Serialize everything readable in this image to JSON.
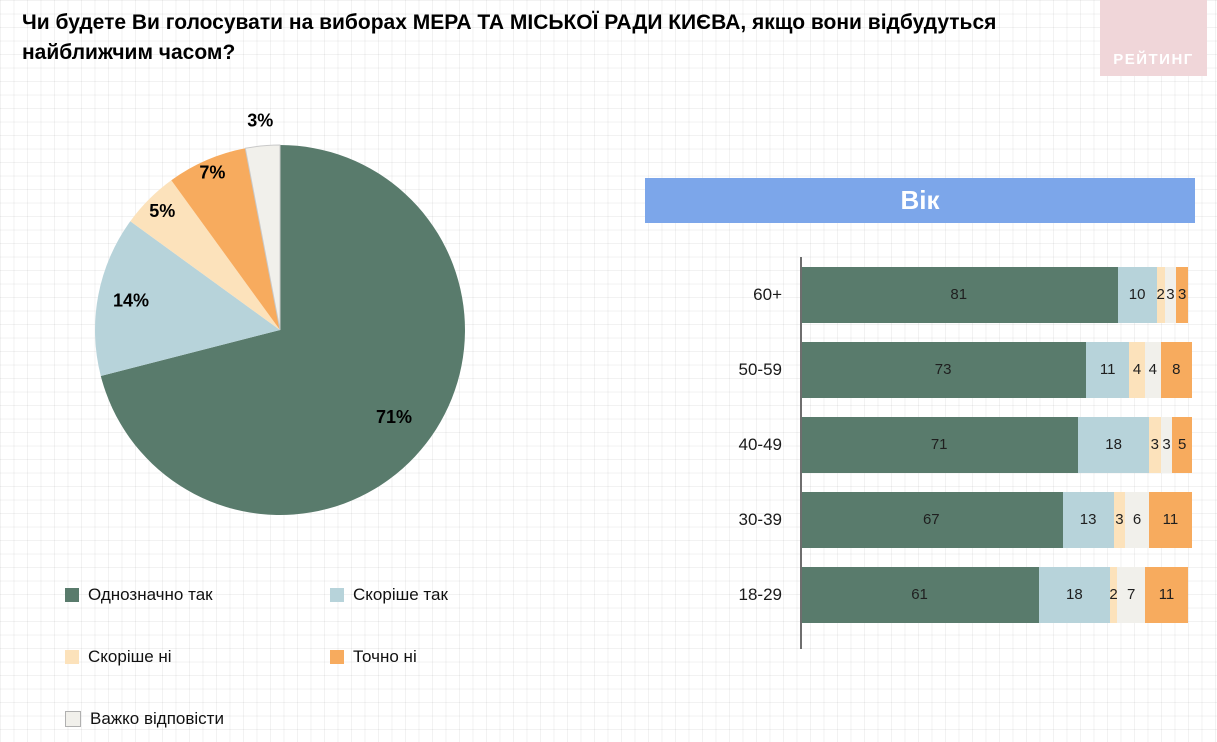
{
  "title": "Чи будете Ви голосувати на виборах МЕРА ТА МІСЬКОЇ РАДИ КИЄВА, якщо вони відбудуться найближчим часом?",
  "logo_text": "РЕЙТИНГ",
  "age_header": "Вік",
  "colors": {
    "definitely_yes": "#597b6c",
    "rather_yes": "#b7d3da",
    "rather_no": "#fce2bb",
    "definitely_no": "#f7ab5e",
    "hard_to_say": "#f1f0eb",
    "banner_blue": "#7ca6ea",
    "logo_pink": "#f0d6d9",
    "axis_gray": "#6e6e6e"
  },
  "chart_data": [
    {
      "type": "pie",
      "labels": [
        "Однозначно так",
        "Скоріше так",
        "Скоріше ні",
        "Точно ні",
        "Важко відповісти"
      ],
      "values": [
        71,
        14,
        5,
        7,
        3
      ],
      "colors": [
        "#597b6c",
        "#b7d3da",
        "#fce2bb",
        "#f7ab5e",
        "#f1f0eb"
      ],
      "value_suffix": "%",
      "start_angle": "top",
      "direction": "clockwise",
      "legend_position": "bottom-left"
    },
    {
      "type": "bar",
      "variant": "horizontal-stacked",
      "title": "Вік",
      "categories": [
        "60+",
        "50-59",
        "40-49",
        "30-39",
        "18-29"
      ],
      "series": [
        {
          "name": "Однозначно так",
          "color": "#597b6c",
          "values": [
            81,
            73,
            71,
            67,
            61
          ]
        },
        {
          "name": "Скоріше так",
          "color": "#b7d3da",
          "values": [
            10,
            11,
            18,
            13,
            18
          ]
        },
        {
          "name": "Скоріше ні",
          "color": "#fce2bb",
          "values": [
            2,
            4,
            3,
            3,
            2
          ]
        },
        {
          "name": "Важко відповісти",
          "color": "#f1f0eb",
          "values": [
            3,
            4,
            3,
            6,
            7
          ]
        },
        {
          "name": "Точно ні",
          "color": "#f7ab5e",
          "values": [
            3,
            8,
            5,
            11,
            11
          ]
        }
      ],
      "xlim": [
        0,
        100
      ],
      "grid": false
    }
  ],
  "legend": {
    "items": [
      {
        "label": "Однозначно так",
        "color": "#597b6c"
      },
      {
        "label": "Скоріше так",
        "color": "#b7d3da"
      },
      {
        "label": "Скоріше ні",
        "color": "#fce2bb"
      },
      {
        "label": "Точно ні",
        "color": "#f7ab5e"
      },
      {
        "label": "Важко відповісти",
        "color": "#f1f0eb"
      }
    ]
  }
}
